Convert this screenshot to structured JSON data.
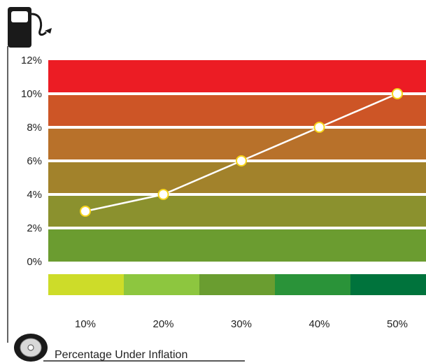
{
  "chart_data": {
    "type": "line",
    "title": "",
    "xlabel": "Percentage Under Inflation",
    "ylabel": "",
    "x": [
      "10%",
      "20%",
      "30%",
      "40%",
      "50%"
    ],
    "y": [
      3,
      4,
      6,
      8,
      10
    ],
    "ylim": [
      0,
      12
    ],
    "y_ticks": [
      "0%",
      "2%",
      "4%",
      "6%",
      "8%",
      "10%",
      "12%"
    ],
    "y_tick_values": [
      0,
      2,
      4,
      6,
      8,
      10,
      12
    ],
    "grid": false,
    "legend": "none",
    "band_colors": [
      "#6b9c30",
      "#8b912e",
      "#a2822b",
      "#b8712a",
      "#cd5526",
      "#ec1c24"
    ],
    "scale_colors": [
      "#cddc29",
      "#8dc63f",
      "#6a9d30",
      "#2a9339",
      "#00733c"
    ],
    "line_color": "#ffffff",
    "marker_fill": "#ffffff",
    "marker_stroke": "#f7d51b",
    "icons": [
      "fuel-pump-icon",
      "tire-icon"
    ]
  }
}
